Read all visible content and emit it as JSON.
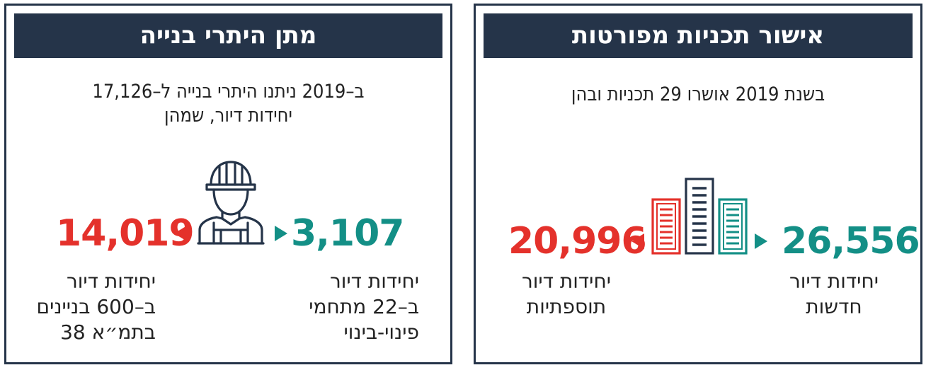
{
  "left_panel": {
    "title": "מתן היתרי בנייה",
    "intro_line1": "ב–2019 ניתנו היתרי בנייה ל–17,126",
    "intro_line2": "יחידות דיור, שמהן",
    "red_value": "14,019",
    "red_caption": [
      "יחידות דיור",
      "ב–600 בניינים",
      "בתמ״א 38"
    ],
    "teal_value": "3,107",
    "teal_caption": [
      "יחידות דיור",
      "ב–22 מתחמי",
      "פינוי-בינוי"
    ],
    "icon": "construction-worker-icon"
  },
  "right_panel": {
    "title": "אישור תכניות מפורטות",
    "intro_line1": "בשנת 2019 אושרו 29 תכניות ובהן",
    "red_value": "20,996",
    "red_caption": [
      "יחידות דיור",
      "תוספתיות"
    ],
    "teal_value": "26,556",
    "teal_caption": [
      "יחידות דיור",
      "חדשות"
    ],
    "icon": "buildings-icon"
  },
  "colors": {
    "navy": "#253449",
    "red": "#e4312b",
    "teal": "#138f86"
  }
}
